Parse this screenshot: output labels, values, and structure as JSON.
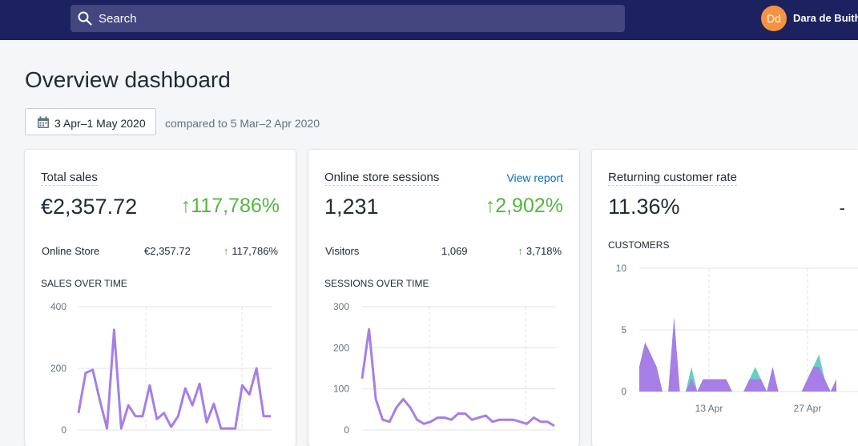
{
  "topbar": {
    "search_placeholder": "Search",
    "avatar_initials": "Dd",
    "user_name": "Dara de Buith"
  },
  "page": {
    "title": "Overview dashboard",
    "date_range": "3 Apr–1 May 2020",
    "compare_text": "compared to 5 Mar–2 Apr 2020"
  },
  "cards": {
    "sales": {
      "title": "Total sales",
      "value": "€2,357.72",
      "change": "117,786%",
      "row_label": "Online Store",
      "row_value": "€2,357.72",
      "row_change": "117,786%",
      "chart_title": "SALES OVER TIME"
    },
    "sessions": {
      "title": "Online store sessions",
      "link": "View report",
      "value": "1,231",
      "change": "2,902%",
      "row_label": "Visitors",
      "row_value": "1,069",
      "row_change": "3,718%",
      "chart_title": "SESSIONS OVER TIME"
    },
    "returning": {
      "title": "Returning customer rate",
      "value": "11.36%",
      "change": "-",
      "chart_title": "CUSTOMERS"
    }
  },
  "colors": {
    "primary_series": "#a77ee6",
    "secondary_series": "#67cdc5",
    "positive": "#50b83c",
    "topbar": "#1c2260"
  },
  "chart_data": [
    {
      "type": "line",
      "title": "SALES OVER TIME",
      "ylim": [
        0,
        400
      ],
      "y_ticks": [
        "0",
        "200",
        "400"
      ],
      "series": [
        {
          "values": [
            55,
            185,
            195,
            95,
            5,
            325,
            5,
            80,
            45,
            45,
            145,
            35,
            55,
            10,
            45,
            135,
            80,
            150,
            25,
            85,
            5,
            5,
            5,
            145,
            115,
            200,
            45,
            45
          ]
        }
      ]
    },
    {
      "type": "line",
      "title": "SESSIONS OVER TIME",
      "ylim": [
        0,
        300
      ],
      "y_ticks": [
        "0",
        "100",
        "200",
        "300"
      ],
      "series": [
        {
          "values": [
            125,
            245,
            75,
            25,
            20,
            55,
            75,
            55,
            25,
            15,
            20,
            30,
            30,
            25,
            40,
            40,
            25,
            30,
            35,
            20,
            25,
            25,
            25,
            20,
            15,
            30,
            20,
            20,
            10
          ]
        }
      ]
    },
    {
      "type": "area",
      "title": "CUSTOMERS",
      "ylim": [
        0,
        10
      ],
      "y_ticks": [
        "0",
        "5",
        "10"
      ],
      "x_ticks": [
        "13 Apr",
        "27 Apr"
      ],
      "series": [
        {
          "values": [
            2,
            4,
            3,
            2,
            0,
            0,
            6,
            0,
            0,
            2,
            0,
            1,
            1,
            1,
            1,
            1,
            0,
            0,
            0,
            1,
            2,
            1,
            0,
            2,
            0,
            0,
            0,
            0,
            0,
            1,
            2,
            3,
            1,
            0,
            1
          ]
        },
        {
          "values": [
            2,
            4,
            3,
            2,
            0,
            0,
            6,
            0,
            0,
            1,
            0,
            1,
            1,
            1,
            1,
            1,
            0,
            0,
            0,
            1,
            1,
            1,
            0,
            2,
            0,
            0,
            0,
            0,
            0,
            1,
            2,
            2,
            1,
            0,
            1
          ]
        }
      ]
    }
  ]
}
